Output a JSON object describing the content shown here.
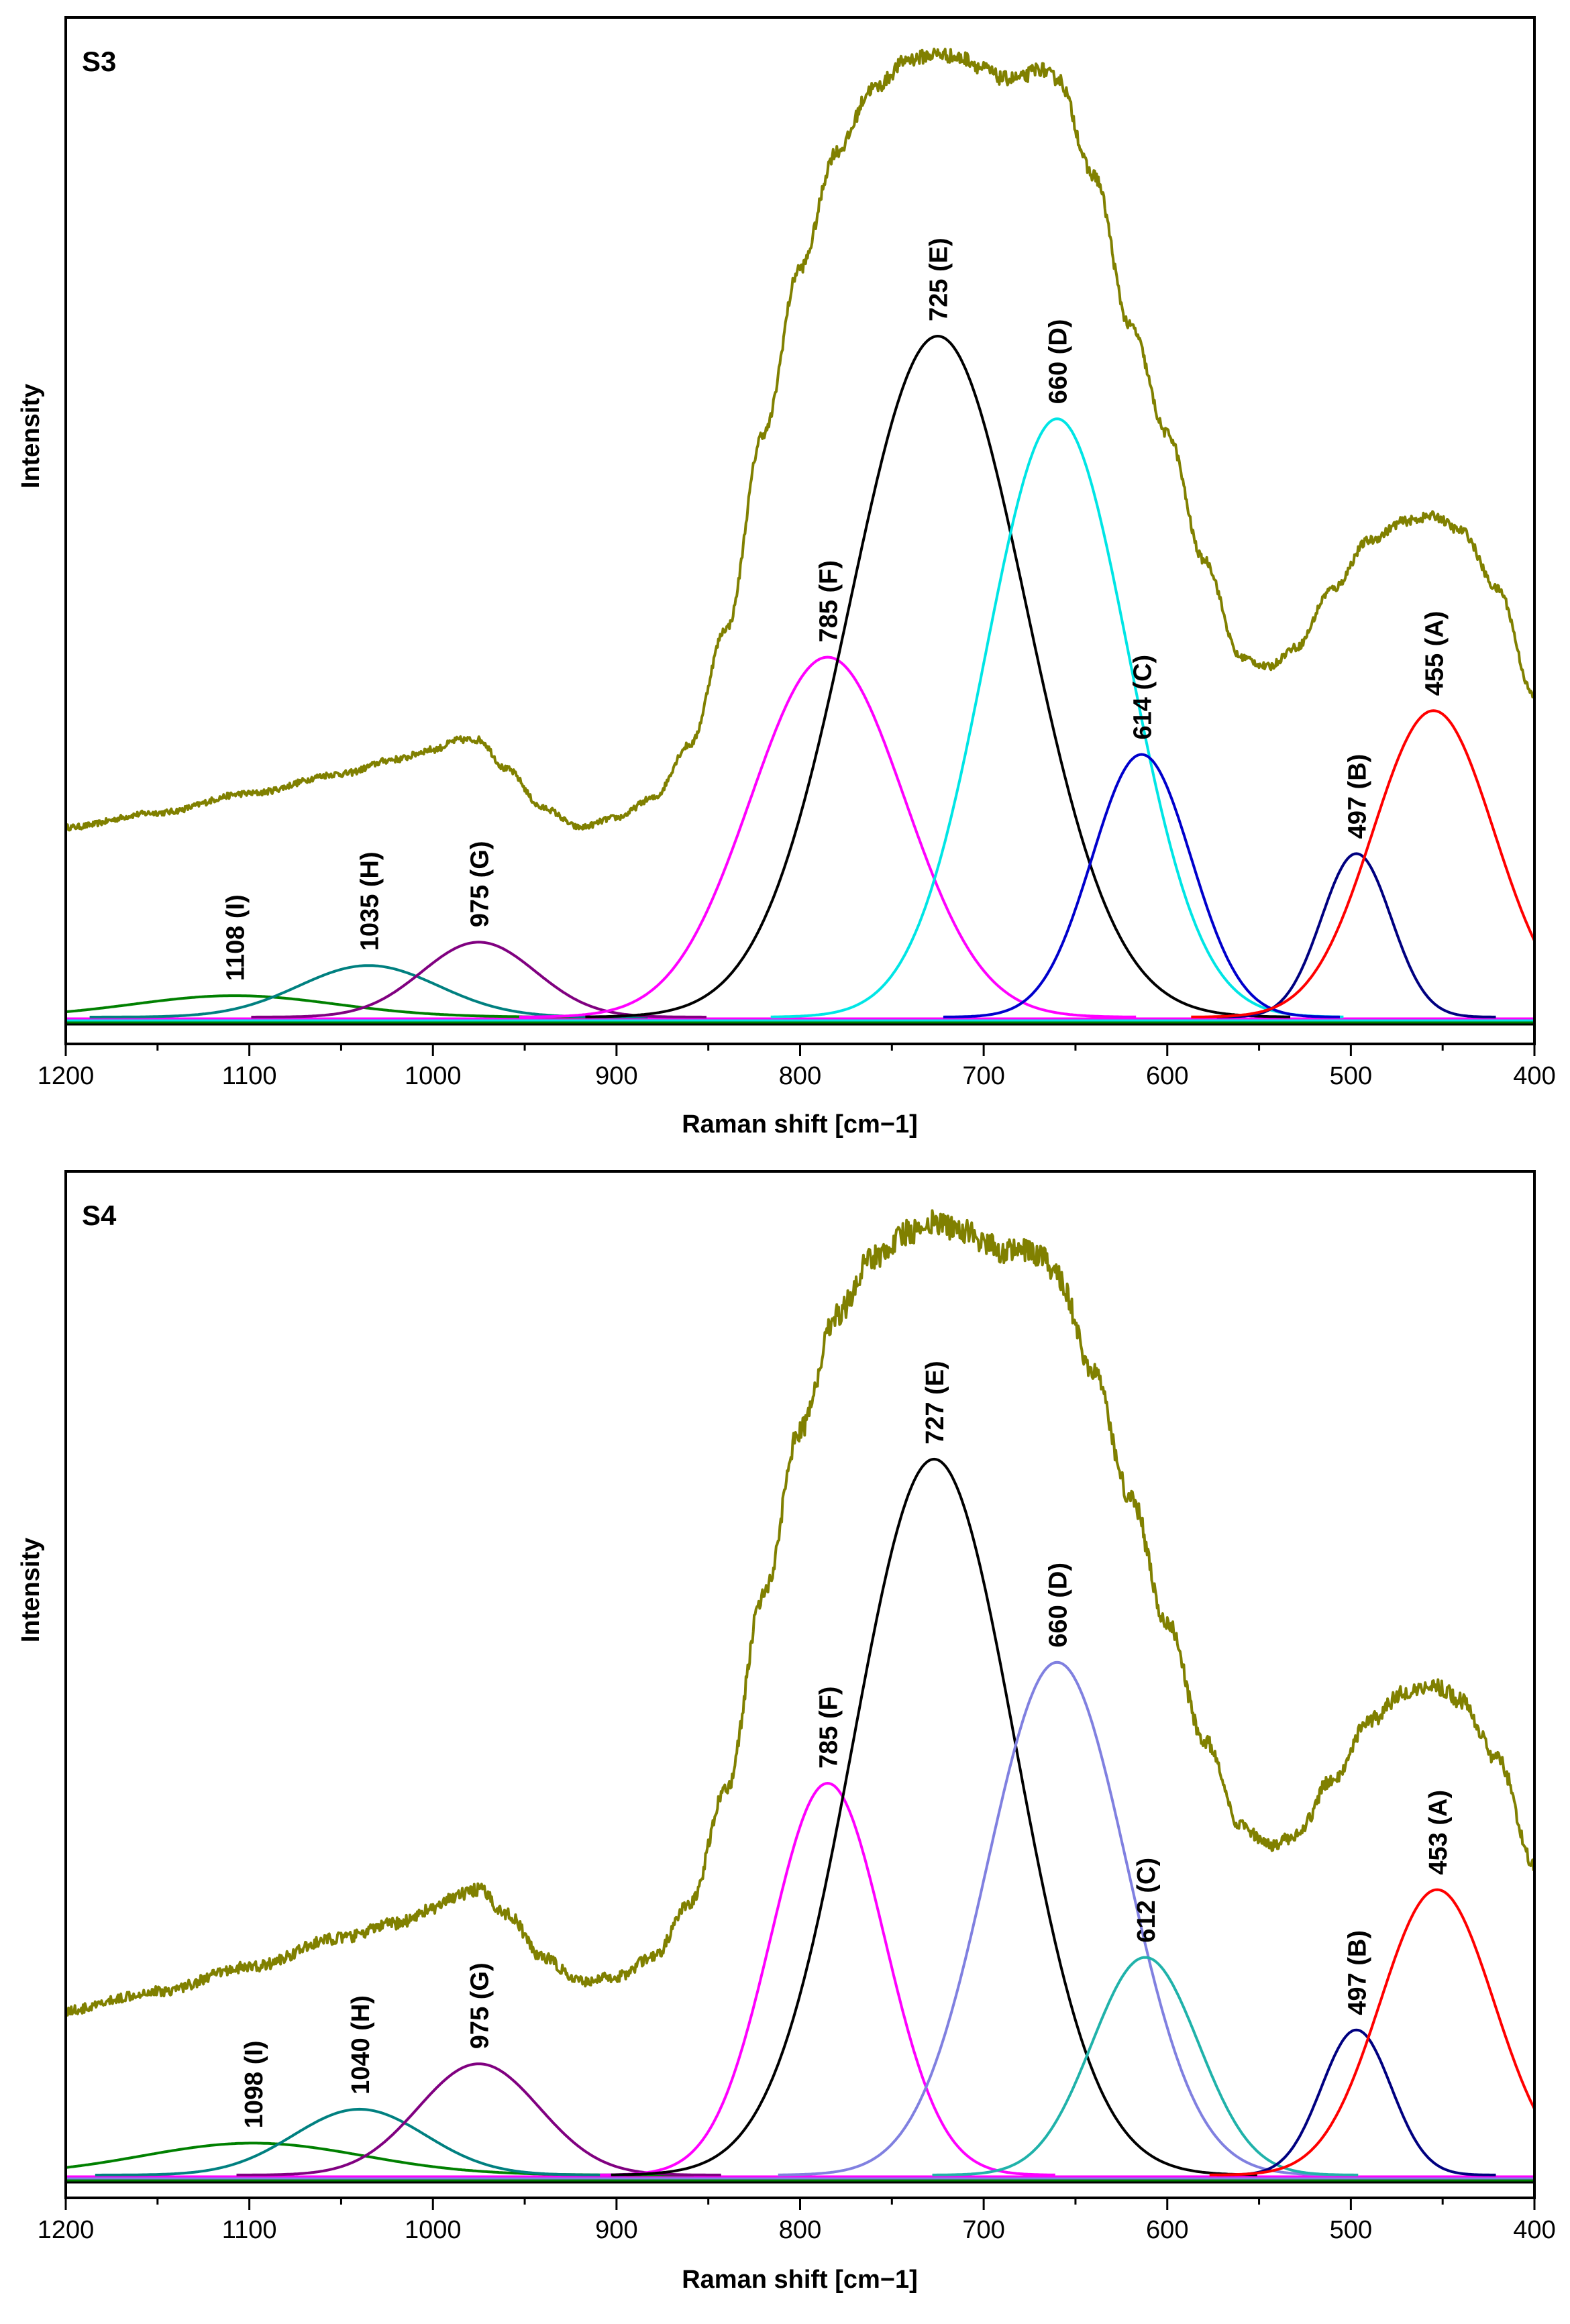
{
  "chart_data": [
    {
      "type": "line",
      "panel_label": "S3",
      "xlabel": "Raman shift [cm−1]",
      "ylabel": "Intensity",
      "xlim": [
        1200,
        400
      ],
      "x_reversed": true,
      "ylim": [
        0,
        100
      ],
      "y_tick_labels_shown": false,
      "x_ticks": [
        1200,
        1100,
        1000,
        900,
        800,
        700,
        600,
        500,
        400
      ],
      "x_tick_labels": [
        "1200",
        "1100",
        "1000",
        "900",
        "800",
        "700",
        "600",
        "500",
        "400"
      ],
      "grid": false,
      "colors": {
        "measured": "#808000",
        "peak_A": "#ff0000",
        "peak_B": "#000080",
        "peak_C": "#0000cc",
        "peak_D": "#00e5e5",
        "peak_E": "#000000",
        "peak_F": "#ff00ff",
        "peak_G": "#800080",
        "peak_H": "#008080",
        "peak_I": "#008000"
      },
      "series": [
        {
          "name": "measured spectrum",
          "x": [
            1200,
            1150,
            1100,
            1050,
            1020,
            1000,
            985,
            975,
            960,
            940,
            920,
            900,
            880,
            860,
            840,
            820,
            800,
            780,
            760,
            740,
            725,
            710,
            700,
            690,
            680,
            670,
            660,
            640,
            620,
            600,
            580,
            560,
            545,
            530,
            510,
            490,
            470,
            455,
            440,
            420,
            400
          ],
          "y": [
            19.5,
            21,
            23,
            25,
            26.5,
            27.5,
            28.5,
            28.5,
            25.5,
            21.5,
            19.5,
            20.5,
            22.5,
            28,
            40,
            60,
            77,
            89,
            95.5,
            98.5,
            99,
            98.5,
            97.5,
            96.5,
            96.5,
            97.5,
            96.5,
            86.5,
            71,
            60,
            47,
            37,
            36,
            38,
            44,
            49,
            51,
            51.5,
            50,
            44,
            33
          ]
        },
        {
          "name": "1108 (I)",
          "peak_label": "1108  (I)",
          "center": 1108,
          "height": 2.2,
          "width": 55
        },
        {
          "name": "1035 (H)",
          "peak_label": "1035  (H)",
          "center": 1035,
          "height": 5.3,
          "width": 38
        },
        {
          "name": "975 (G)",
          "peak_label": "975  (G)",
          "center": 975,
          "height": 7.7,
          "width": 31
        },
        {
          "name": "785 (F)",
          "peak_label": "785  (F)",
          "center": 785,
          "height": 37,
          "width": 42
        },
        {
          "name": "725 (E)",
          "peak_label": "725  (E)",
          "center": 725,
          "height": 70,
          "width": 48
        },
        {
          "name": "660 (D)",
          "peak_label": "660  (D)",
          "center": 660,
          "height": 61.5,
          "width": 39
        },
        {
          "name": "614 (C)",
          "peak_label": "614  (C)",
          "center": 614,
          "height": 27,
          "width": 27
        },
        {
          "name": "497 (B)",
          "peak_label": "497  (B)",
          "center": 497,
          "height": 16.8,
          "width": 19
        },
        {
          "name": "455 (A)",
          "peak_label": "455  (A)",
          "center": 455,
          "height": 31.5,
          "width": 33
        }
      ]
    },
    {
      "type": "line",
      "panel_label": "S4",
      "xlabel": "Raman shift [cm−1]",
      "ylabel": "Intensity",
      "xlim": [
        1200,
        400
      ],
      "x_reversed": true,
      "ylim": [
        0,
        100
      ],
      "y_tick_labels_shown": false,
      "x_ticks": [
        1200,
        1100,
        1000,
        900,
        800,
        700,
        600,
        500,
        400
      ],
      "x_tick_labels": [
        "1200",
        "1100",
        "1000",
        "900",
        "800",
        "700",
        "600",
        "500",
        "400"
      ],
      "grid": false,
      "colors": {
        "measured": "#808000",
        "peak_A": "#ff0000",
        "peak_B": "#000080",
        "peak_C": "#20b2aa",
        "peak_D": "#8080e0",
        "peak_E": "#000000",
        "peak_F": "#ff00ff",
        "peak_G": "#800080",
        "peak_H": "#008080",
        "peak_I": "#008000"
      },
      "series": [
        {
          "name": "measured spectrum",
          "x": [
            1200,
            1150,
            1100,
            1050,
            1020,
            1000,
            985,
            975,
            960,
            940,
            920,
            900,
            880,
            860,
            840,
            820,
            800,
            780,
            760,
            740,
            727,
            710,
            700,
            690,
            680,
            670,
            660,
            640,
            620,
            600,
            580,
            560,
            545,
            530,
            510,
            490,
            470,
            453,
            440,
            420,
            400
          ],
          "y": [
            17,
            19,
            21.5,
            24.5,
            26,
            27.5,
            29,
            29.5,
            27,
            22.5,
            20,
            20.5,
            22.5,
            28,
            40,
            60,
            77,
            89,
            95,
            97.5,
            98.5,
            97.5,
            96.5,
            95.5,
            95.5,
            95,
            93,
            83,
            70,
            57,
            45,
            36,
            34,
            35,
            41,
            47,
            50,
            50.5,
            49,
            43,
            32
          ]
        },
        {
          "name": "1098 (I)",
          "peak_label": "1098  (I)",
          "center": 1098,
          "height": 3.3,
          "width": 60
        },
        {
          "name": "1040 (H)",
          "peak_label": "1040  (H)",
          "center": 1040,
          "height": 6.8,
          "width": 36
        },
        {
          "name": "975 (G)",
          "peak_label": "975  (G)",
          "center": 975,
          "height": 11.5,
          "width": 33
        },
        {
          "name": "785 (F)",
          "peak_label": "785  (F)",
          "center": 785,
          "height": 40.5,
          "width": 31
        },
        {
          "name": "727 (E)",
          "peak_label": "727  (E)",
          "center": 727,
          "height": 74,
          "width": 44
        },
        {
          "name": "660 (D)",
          "peak_label": "660  (D)",
          "center": 660,
          "height": 53,
          "width": 38
        },
        {
          "name": "612 (C)",
          "peak_label": "612  (C)",
          "center": 612,
          "height": 22.5,
          "width": 29
        },
        {
          "name": "497 (B)",
          "peak_label": "497  (B)",
          "center": 497,
          "height": 15,
          "width": 19
        },
        {
          "name": "453 (A)",
          "peak_label": "453  (A)",
          "center": 453,
          "height": 29.5,
          "width": 31
        }
      ]
    }
  ]
}
